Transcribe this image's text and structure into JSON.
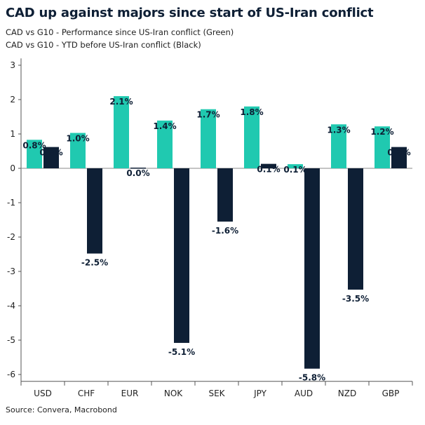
{
  "chart_data": {
    "type": "bar",
    "title": "CAD up against majors since start of US-Iran conflict",
    "subtitle_lines": [
      "CAD vs G10 - Performance since US-Iran conflict (Green)",
      "CAD vs G10 - YTD before US-Iran conflict (Black)"
    ],
    "source": "Source: Convera, Macrobond",
    "categories": [
      "USD",
      "CHF",
      "EUR",
      "NOK",
      "SEK",
      "JPY",
      "AUD",
      "NZD",
      "GBP"
    ],
    "series": [
      {
        "color": "#20c9b0",
        "values": [
          0.83,
          1.03,
          2.1,
          1.39,
          1.72,
          1.8,
          0.12,
          1.28,
          1.22
        ],
        "labels": [
          "0.8%",
          "1.0%",
          "2.1%",
          "1.4%",
          "1.7%",
          "1.8%",
          "0.1%",
          "1.3%",
          "1.2%"
        ]
      },
      {
        "color": "#0e1f35",
        "values": [
          0.62,
          -2.48,
          0.02,
          -5.08,
          -1.55,
          0.13,
          -5.83,
          -3.53,
          0.62
        ],
        "labels": [
          "0.6%",
          "-2.5%",
          "0.0%",
          "-5.1%",
          "-1.6%",
          "0.1%",
          "-5.8%",
          "-3.5%",
          "0.6%"
        ]
      }
    ],
    "ylim": [
      -6.2,
      3.2
    ],
    "yticks": [
      3,
      2,
      1,
      0,
      -1,
      -2,
      -3,
      -4,
      -5,
      -6
    ],
    "grid": false,
    "legend": "none"
  }
}
